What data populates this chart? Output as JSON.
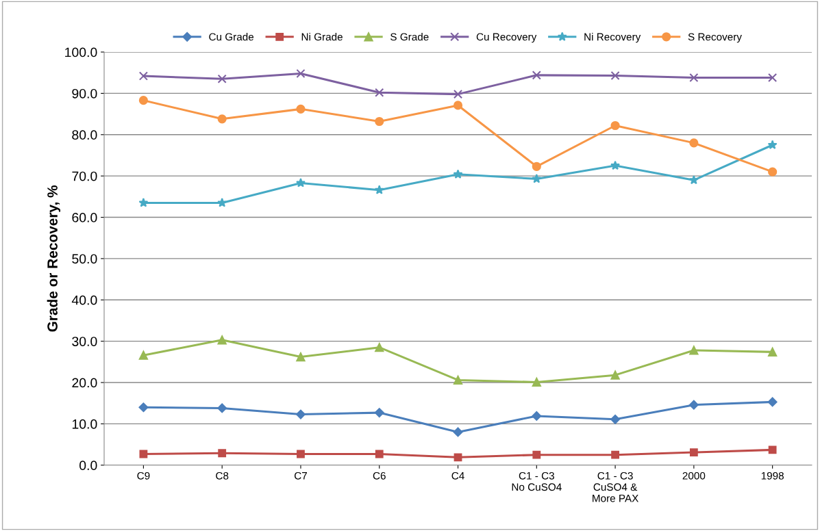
{
  "chart_data": {
    "type": "line",
    "ylabel": "Grade or Recovery, %",
    "categories": [
      "C9",
      "C8",
      "C7",
      "C6",
      "C4",
      "C1 - C3\nNo CuSO4",
      "C1 - C3\nCuSO4 &\nMore PAX",
      "2000",
      "1998"
    ],
    "series": [
      {
        "name": "Cu Grade",
        "color": "#4a7ebb",
        "marker": "diamond",
        "values": [
          14.0,
          13.8,
          12.3,
          12.7,
          8.0,
          11.9,
          11.1,
          14.6,
          15.3
        ]
      },
      {
        "name": "Ni Grade",
        "color": "#be4b48",
        "marker": "square",
        "values": [
          2.7,
          2.9,
          2.7,
          2.7,
          1.9,
          2.5,
          2.5,
          3.1,
          3.7
        ]
      },
      {
        "name": "S Grade",
        "color": "#98b954",
        "marker": "triangle",
        "values": [
          26.6,
          30.3,
          26.2,
          28.5,
          20.6,
          20.1,
          21.8,
          27.8,
          27.4
        ]
      },
      {
        "name": "Cu Recovery",
        "color": "#7d60a0",
        "marker": "cross",
        "values": [
          94.2,
          93.5,
          94.8,
          90.2,
          89.8,
          94.4,
          94.3,
          93.8,
          93.8
        ]
      },
      {
        "name": "Ni Recovery",
        "color": "#46aac5",
        "marker": "star",
        "values": [
          63.5,
          63.5,
          68.3,
          66.6,
          70.4,
          69.3,
          72.5,
          69.0,
          77.5
        ]
      },
      {
        "name": "S Recovery",
        "color": "#f79646",
        "marker": "circle",
        "values": [
          88.3,
          83.8,
          86.2,
          83.2,
          87.1,
          72.3,
          82.2,
          78.0,
          71.0
        ]
      }
    ],
    "ylim": [
      0,
      100
    ],
    "yticks": [
      {
        "value": 0,
        "label": "0.0"
      },
      {
        "value": 10,
        "label": "10.0"
      },
      {
        "value": 20,
        "label": "20.0"
      },
      {
        "value": 30,
        "label": "30.0"
      },
      {
        "value": 40,
        "label": "40.0"
      },
      {
        "value": 50,
        "label": "50.0"
      },
      {
        "value": 60,
        "label": "60.0"
      },
      {
        "value": 70,
        "label": "70.0"
      },
      {
        "value": 80,
        "label": "80.0"
      },
      {
        "value": 90,
        "label": "90.0"
      },
      {
        "value": 100,
        "label": "100.0"
      }
    ],
    "grid": "y",
    "legend": "top",
    "line_style": "solid"
  }
}
